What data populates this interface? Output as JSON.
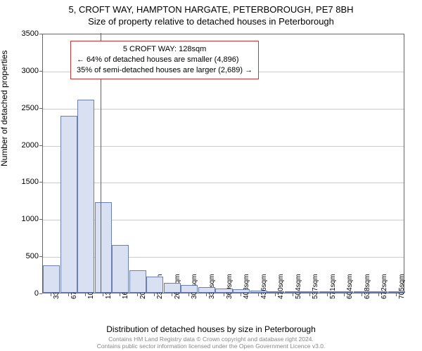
{
  "chart": {
    "type": "histogram",
    "title_main": "5, CROFT WAY, HAMPTON HARGATE, PETERBOROUGH, PE7 8BH",
    "title_sub": "Size of property relative to detached houses in Peterborough",
    "y_axis_label": "Number of detached properties",
    "x_axis_label": "Distribution of detached houses by size in Peterborough",
    "background_color": "#ffffff",
    "plot_border_color": "#666666",
    "grid_color": "#cccccc",
    "bar_fill_color": "#d9e0f2",
    "bar_border_color": "#6a7fb5",
    "marker_color": "#cc3333",
    "marker_x_value": 128,
    "ylim": [
      0,
      3500
    ],
    "ytick_step": 500,
    "yticks": [
      0,
      500,
      1000,
      1500,
      2000,
      2500,
      3000,
      3500
    ],
    "xtick_labels": [
      "33sqm",
      "67sqm",
      "100sqm",
      "134sqm",
      "167sqm",
      "201sqm",
      "235sqm",
      "268sqm",
      "302sqm",
      "336sqm",
      "369sqm",
      "403sqm",
      "436sqm",
      "470sqm",
      "504sqm",
      "537sqm",
      "571sqm",
      "604sqm",
      "638sqm",
      "672sqm",
      "705sqm"
    ],
    "bar_values": [
      370,
      2380,
      2600,
      1220,
      640,
      300,
      220,
      130,
      100,
      80,
      60,
      50,
      30,
      20,
      15,
      10,
      8,
      6,
      5,
      4,
      3
    ],
    "title_fontsize": 13,
    "label_fontsize": 12,
    "tick_fontsize": 11
  },
  "info_box": {
    "border_color": "#cc3333",
    "line1": "5 CROFT WAY: 128sqm",
    "line2": "← 64% of detached houses are smaller (4,896)",
    "line3": "35% of semi-detached houses are larger (2,689) →"
  },
  "footer": {
    "line1": "Contains HM Land Registry data © Crown copyright and database right 2024.",
    "line2": "Contains public sector information licensed under the Open Government Licence v3.0."
  }
}
